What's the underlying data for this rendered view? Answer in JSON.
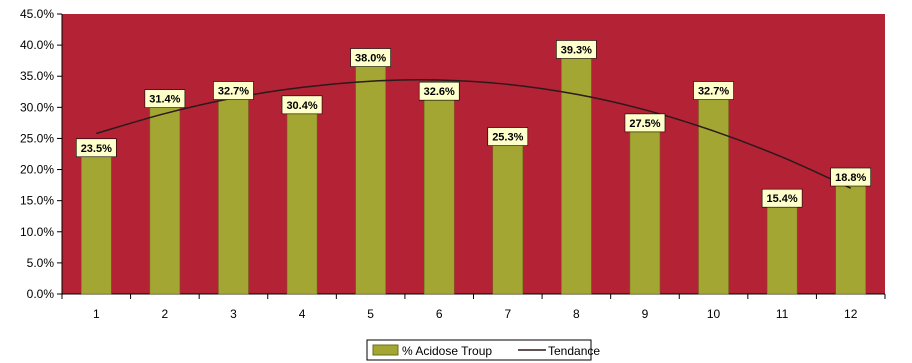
{
  "chart_data": {
    "type": "bar",
    "categories": [
      "1",
      "2",
      "3",
      "4",
      "5",
      "6",
      "7",
      "8",
      "9",
      "10",
      "11",
      "12"
    ],
    "series": [
      {
        "name": "% Acidose Troup",
        "values": [
          23.5,
          31.4,
          32.7,
          30.4,
          38.0,
          32.6,
          25.3,
          39.3,
          27.5,
          32.7,
          15.4,
          18.8
        ],
        "labels": [
          "23.5%",
          "31.4%",
          "32.7%",
          "30.4%",
          "38.0%",
          "32.6%",
          "25.3%",
          "39.3%",
          "27.5%",
          "32.7%",
          "15.4%",
          "18.8%"
        ]
      }
    ],
    "trendline": {
      "name": "Tendance",
      "type": "polynomial",
      "values": [
        25.8,
        29.0,
        31.5,
        33.2,
        34.2,
        34.4,
        33.7,
        32.1,
        29.6,
        26.2,
        22.0,
        17.0
      ]
    },
    "ylim": [
      0,
      45
    ],
    "y_ticks": [
      "0.0%",
      "5.0%",
      "10.0%",
      "15.0%",
      "20.0%",
      "25.0%",
      "30.0%",
      "35.0%",
      "40.0%",
      "45.0%"
    ],
    "y_tick_values": [
      0,
      5,
      10,
      15,
      20,
      25,
      30,
      35,
      40,
      45
    ],
    "xlabel": "",
    "ylabel": "",
    "grid": false,
    "legend_position": "bottom",
    "colors": {
      "plot_background": "#b32335",
      "bar": "#a3a632",
      "bar_stroke": "#6b6d1e",
      "trendline": "#2a1a1a",
      "label_background": "#ffffcc"
    }
  },
  "legend": {
    "bar_label": "% Acidose Troup",
    "line_label": "Tendance"
  }
}
